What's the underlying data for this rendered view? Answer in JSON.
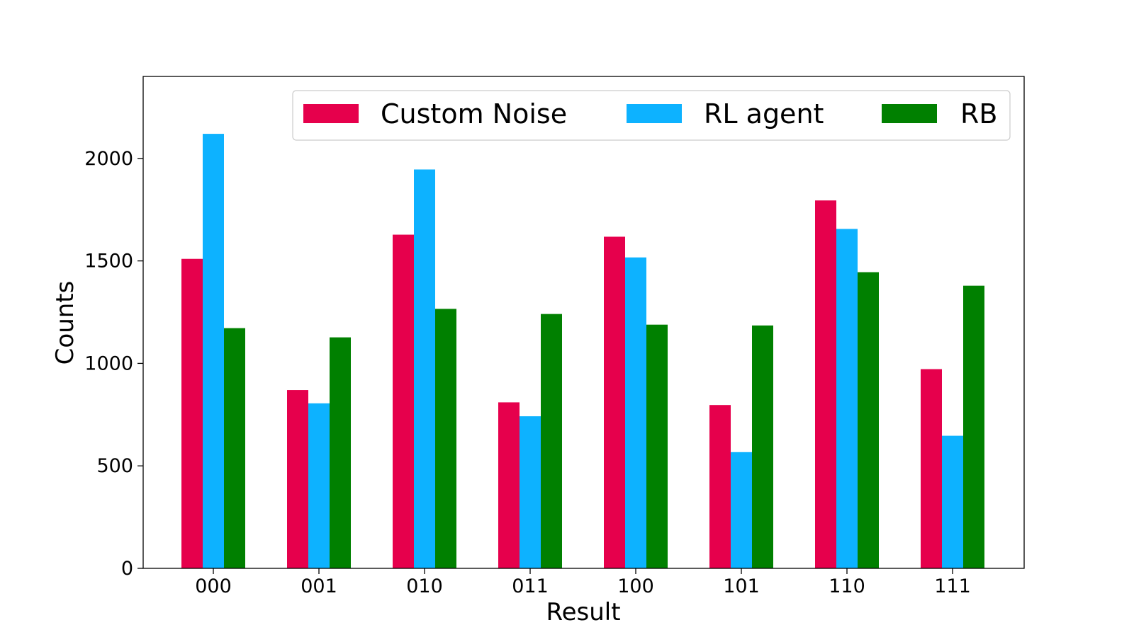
{
  "chart_data": {
    "type": "bar",
    "title": "",
    "xlabel": "Result",
    "ylabel": "Counts",
    "categories": [
      "000",
      "001",
      "010",
      "011",
      "100",
      "101",
      "110",
      "111"
    ],
    "series": [
      {
        "name": "Custom Noise",
        "color": "#e6004c",
        "values": [
          1510,
          870,
          1628,
          810,
          1618,
          797,
          1795,
          972
        ]
      },
      {
        "name": "RL agent",
        "color": "#0db2ff",
        "values": [
          2120,
          805,
          1946,
          742,
          1517,
          567,
          1656,
          647
        ]
      },
      {
        "name": "RB",
        "color": "#008000",
        "values": [
          1172,
          1127,
          1266,
          1241,
          1189,
          1185,
          1445,
          1379
        ]
      }
    ],
    "yticks": [
      "0",
      "500",
      "1000",
      "1500",
      "2000"
    ],
    "ylim": [
      0,
      2400
    ],
    "grid": false,
    "legend": {
      "position": "top-right",
      "columns": 3
    }
  }
}
